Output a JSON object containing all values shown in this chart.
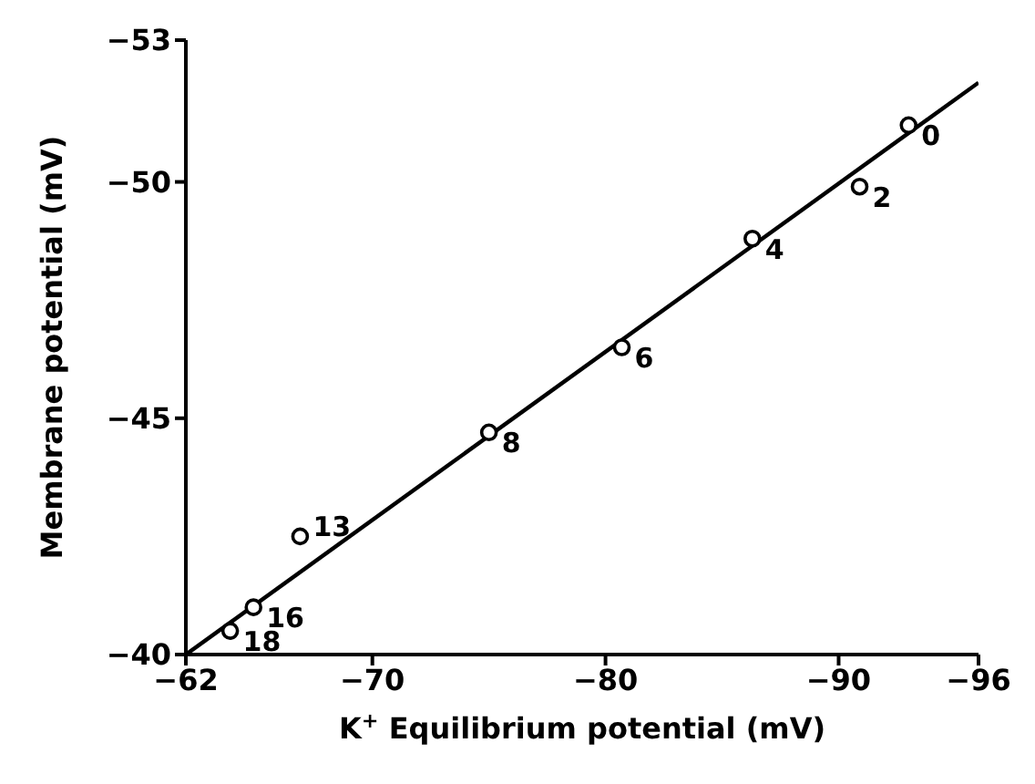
{
  "chart_data": {
    "type": "scatter",
    "xlabel": "K$^{+}$ Equilibrium potential (mV)",
    "ylabel": "Membrane potential (mV)",
    "xlim": [
      -62,
      -96
    ],
    "xticks": [
      -62,
      -70,
      -80,
      -90,
      -96
    ],
    "ylim": [
      -40,
      -53
    ],
    "yticks": [
      -40,
      -45,
      -50,
      -53
    ],
    "grid": false,
    "legend": false,
    "marker": "circle",
    "series": [
      {
        "color": "#000000",
        "x": [
          -93.0,
          -90.9,
          -86.3,
          -80.7,
          -75.0,
          -66.9,
          -64.9,
          -63.9
        ],
        "values": [
          -51.2,
          -49.9,
          -48.8,
          -46.5,
          -44.7,
          -42.5,
          -41.0,
          -40.5
        ]
      },
      {
        "type": "line",
        "color": "#000000",
        "marker": "none",
        "line_style": "solid",
        "x": [
          -62,
          -96
        ],
        "values": [
          -40,
          -52.1
        ]
      }
    ],
    "annotations": [
      {
        "text": "0",
        "x": -93.0,
        "y": -51.2
      },
      {
        "text": "2",
        "x": -90.9,
        "y": -49.9
      },
      {
        "text": "4",
        "x": -86.3,
        "y": -48.8
      },
      {
        "text": "6",
        "x": -80.7,
        "y": -46.5
      },
      {
        "text": "8",
        "x": -75.0,
        "y": -44.7
      },
      {
        "text": "13",
        "x": -66.9,
        "y": -42.5
      },
      {
        "text": "16",
        "x": -64.9,
        "y": -41.0
      },
      {
        "text": "18",
        "x": -63.9,
        "y": -40.5
      }
    ]
  }
}
